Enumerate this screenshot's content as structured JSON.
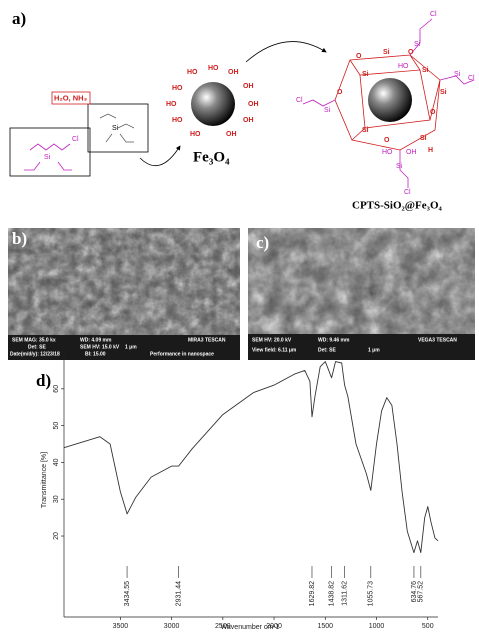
{
  "scheme": {
    "label": "a)",
    "reagent": "H₂O, NH₃",
    "core": "Fe₃O₄",
    "product": "CPTS-SiO₂@Fe₃O₄",
    "atoms": [
      "Si",
      "O",
      "Cl",
      "HO",
      "OH",
      "H"
    ]
  },
  "sem_b": {
    "label": "b)",
    "info": [
      "SEM MAG: 35.0 kx",
      "WD: 4.09 mm",
      "MIRA3 TESCAN",
      "Det: SE",
      "SEM HV: 15.0 kV",
      "1 μm",
      "Date(m/d/y): 12/23/18",
      "BI: 15.00",
      "Performance in nanospace"
    ]
  },
  "sem_c": {
    "label": "c)",
    "info": [
      "SEM HV: 20.0 kV",
      "WD: 9.46 mm",
      "VEGA3 TESCAN",
      "View field: 6.11 μm",
      "Det: SE",
      "1 μm"
    ]
  },
  "chart_data": {
    "type": "line",
    "panel_label": "d)",
    "x_label": "Wavenumber cm-1",
    "y_label": "Transmittance [%]",
    "x": [
      4050,
      3700,
      3600,
      3500,
      3434.55,
      3350,
      3200,
      3000,
      2931.44,
      2800,
      2500,
      2200,
      2000,
      1800,
      1700,
      1650,
      1629.82,
      1600,
      1550,
      1500,
      1438.82,
      1400,
      1340,
      1311.62,
      1280,
      1200,
      1100,
      1055.73,
      1000,
      950,
      900,
      850,
      800,
      750,
      700,
      634.76,
      600,
      567.52,
      530,
      500,
      470,
      430,
      400
    ],
    "series": [
      {
        "name": "CPTS-SiO₂@Fe₃O₄",
        "color": "#333333",
        "values": [
          44,
          47,
          45,
          32,
          26,
          30.5,
          36,
          39,
          39,
          43.7,
          53,
          59,
          61,
          64,
          65,
          62,
          52.4,
          58,
          66,
          67.4,
          63,
          67.4,
          67,
          61,
          58,
          45,
          37,
          32.4,
          45,
          54,
          57.6,
          55.5,
          45,
          32,
          21.3,
          15.5,
          18.7,
          15.5,
          25,
          28,
          24,
          19.5,
          18.7
        ]
      }
    ],
    "xlim": [
      4050,
      400
    ],
    "ylim": [
      -2,
      70
    ],
    "xticks": [
      3500,
      3000,
      2500,
      2000,
      1500,
      1000,
      500
    ],
    "yticks": [
      20,
      30,
      40,
      50,
      60
    ],
    "peak_labels": [
      3434.55,
      2931.44,
      1629.82,
      1438.82,
      1311.62,
      1055.73,
      634.76,
      567.52
    ]
  }
}
